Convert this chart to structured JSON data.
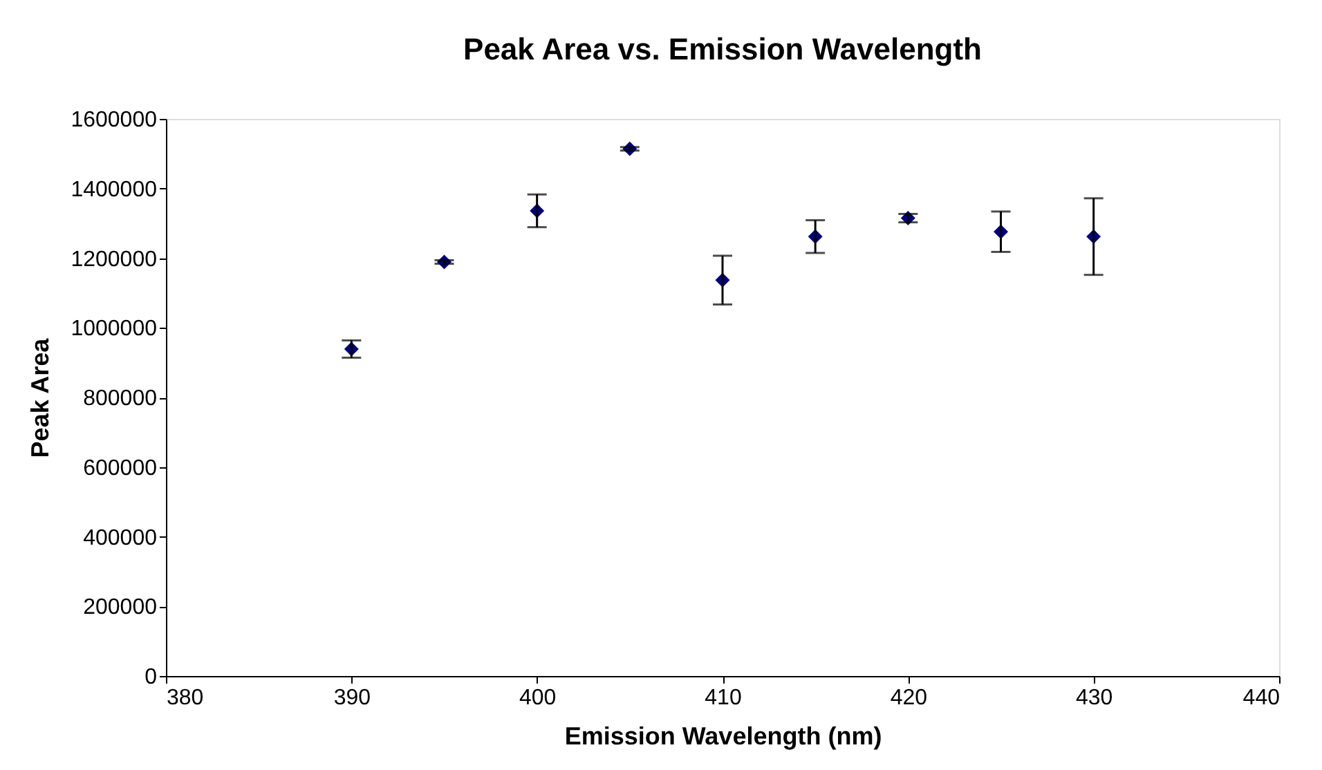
{
  "chart_data": {
    "type": "scatter",
    "title": "Peak Area vs. Emission Wavelength",
    "xlabel": "Emission Wavelength (nm)",
    "ylabel": "Peak Area",
    "x": [
      390,
      395,
      400,
      405,
      410,
      415,
      420,
      425,
      430
    ],
    "series": [
      {
        "color": "#000080",
        "values": [
          939000,
          1189000,
          1336000,
          1514000,
          1137000,
          1262000,
          1315000,
          1276000,
          1262000
        ],
        "errors": [
          25000,
          5000,
          47000,
          5000,
          70000,
          47000,
          12000,
          58000,
          110000
        ]
      }
    ],
    "xlim": [
      380,
      440
    ],
    "xticks": [
      380,
      390,
      400,
      410,
      420,
      430,
      440
    ],
    "ylim": [
      0,
      1600000
    ],
    "yticks": [
      0,
      200000,
      400000,
      600000,
      800000,
      1000000,
      1200000,
      1400000,
      1600000
    ],
    "marker": "diamond",
    "grid": false,
    "legend": false
  }
}
